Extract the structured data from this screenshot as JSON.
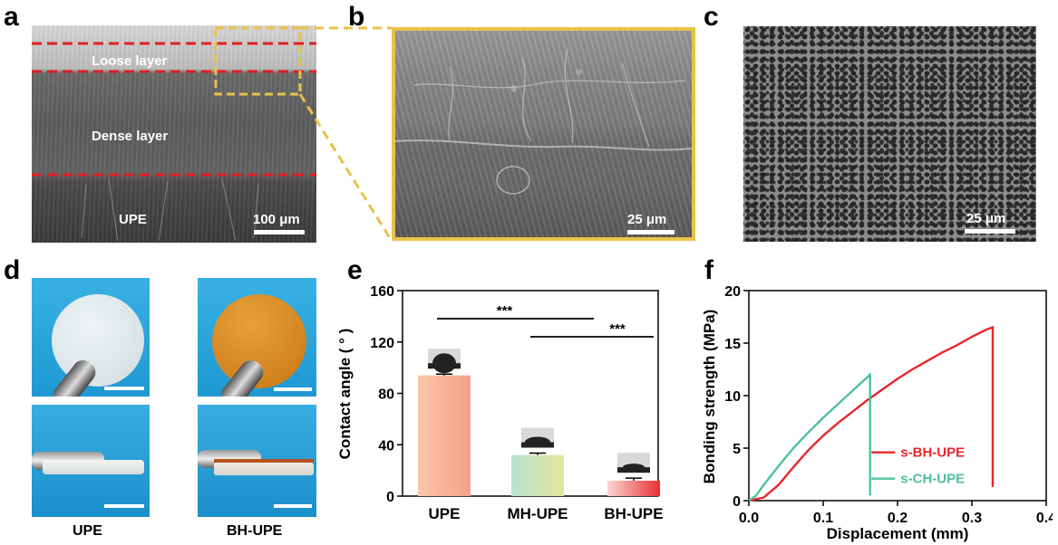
{
  "panel_labels": {
    "a": "a",
    "b": "b",
    "c": "c",
    "d": "d",
    "e": "e",
    "f": "f"
  },
  "panel_a": {
    "layers": [
      "Loose layer",
      "Dense layer",
      "UPE"
    ],
    "scale_bar": "100 μm",
    "dashed_line_color": "#e02020",
    "inset_box_color": "#e8c24a"
  },
  "panel_b": {
    "scale_bar": "25 μm",
    "frame_color": "#e8c24a"
  },
  "panel_c": {
    "scale_bar": "25 μm"
  },
  "panel_d": {
    "captions": [
      "UPE",
      "BH-UPE"
    ],
    "disc_colors": {
      "UPE": "#d9e4e6",
      "BH-UPE": "#d88a1e"
    },
    "background_color": "#29a7dd"
  },
  "chart_data": [
    {
      "panel": "e",
      "type": "bar",
      "categories": [
        "UPE",
        "MH-UPE",
        "BH-UPE"
      ],
      "values": [
        94,
        32,
        12
      ],
      "errors": [
        1,
        1.5,
        2
      ],
      "ylabel": "Contact angle ( ° )",
      "ylim": [
        0,
        160
      ],
      "yticks": [
        0,
        40,
        80,
        120,
        160
      ],
      "bar_colors": [
        [
          "#fcc6ab",
          "#f5a088"
        ],
        [
          "#b9e2cf",
          "#e3e69d"
        ],
        [
          "#fbd5d5",
          "#ea2f32"
        ]
      ],
      "significance": [
        {
          "from": "UPE",
          "to": "MH-UPE",
          "label": "***"
        },
        {
          "from": "MH-UPE",
          "to": "BH-UPE",
          "label": "***"
        }
      ]
    },
    {
      "panel": "f",
      "type": "line",
      "xlabel": "Displacement (mm)",
      "ylabel": "Bonding strength (MPa)",
      "xlim": [
        0.0,
        0.4
      ],
      "ylim": [
        0,
        20
      ],
      "xticks": [
        "0.0",
        "0.1",
        "0.2",
        "0.3",
        "0.4"
      ],
      "yticks": [
        "0",
        "5",
        "10",
        "15",
        "20"
      ],
      "legend_position": "bottom-right",
      "series": [
        {
          "name": "s-BH-UPE",
          "color": "#e8262a",
          "x": [
            0.0,
            0.02,
            0.04,
            0.06,
            0.08,
            0.1,
            0.12,
            0.14,
            0.16,
            0.18,
            0.2,
            0.22,
            0.24,
            0.26,
            0.28,
            0.3,
            0.32,
            0.328,
            0.328
          ],
          "y": [
            0.0,
            0.3,
            1.5,
            3.2,
            4.8,
            6.2,
            7.4,
            8.5,
            9.6,
            10.6,
            11.6,
            12.5,
            13.3,
            14.1,
            14.8,
            15.6,
            16.3,
            16.5,
            1.3
          ]
        },
        {
          "name": "s-CH-UPE",
          "color": "#4ec29a",
          "x": [
            0.0,
            0.01,
            0.02,
            0.04,
            0.06,
            0.08,
            0.1,
            0.12,
            0.14,
            0.16,
            0.163,
            0.163
          ],
          "y": [
            0.0,
            0.5,
            1.5,
            3.3,
            5.0,
            6.5,
            7.9,
            9.2,
            10.5,
            11.8,
            12.0,
            0.5
          ]
        }
      ]
    }
  ]
}
